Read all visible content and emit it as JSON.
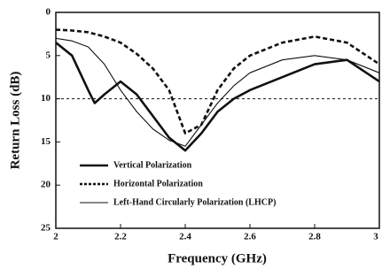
{
  "chart_data": {
    "type": "line",
    "xlabel": "Frequency (GHz)",
    "ylabel": "Return Loss (dB)",
    "x": [
      2.0,
      2.05,
      2.1,
      2.12,
      2.15,
      2.2,
      2.25,
      2.3,
      2.35,
      2.4,
      2.45,
      2.5,
      2.55,
      2.6,
      2.7,
      2.8,
      2.9,
      3.0
    ],
    "series": [
      {
        "name": "Vertical Polarization",
        "color": "#111111",
        "style": "thick",
        "values": [
          3.5,
          5,
          9,
          10.5,
          9.5,
          8,
          9.5,
          12,
          14.5,
          16,
          14,
          11.5,
          10,
          9,
          7.5,
          6,
          5.5,
          8
        ]
      },
      {
        "name": "Horizontal Polarization",
        "color": "#111111",
        "style": "dashed",
        "values": [
          2,
          2.1,
          2.3,
          2.5,
          2.8,
          3.5,
          4.8,
          6.5,
          9,
          14,
          13,
          9,
          6.5,
          5,
          3.5,
          2.8,
          3.5,
          6
        ]
      },
      {
        "name": "Left-Hand Circularly Polarization (LHCP)",
        "color": "#111111",
        "style": "thin",
        "values": [
          3,
          3.3,
          4,
          4.8,
          6,
          9,
          11.5,
          13.5,
          14.8,
          15.5,
          13,
          10.5,
          8.5,
          7,
          5.5,
          5,
          5.5,
          7
        ]
      }
    ],
    "hline": 10,
    "xlim": [
      2,
      3
    ],
    "xticks": [
      2,
      2.2,
      2.4,
      2.6,
      2.8,
      3
    ],
    "ylim": [
      0,
      25
    ],
    "yticks": [
      0,
      5,
      10,
      15,
      20,
      25
    ],
    "y_inverted": true
  }
}
